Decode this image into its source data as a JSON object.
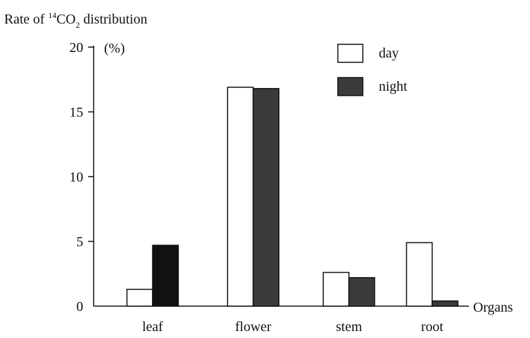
{
  "chart_data": {
    "type": "bar",
    "title": "",
    "ylabel_parts": {
      "prefix": "Rate of ",
      "superscript": "14",
      "co": "CO",
      "subscript": "2",
      "suffix": " distribution"
    },
    "y_unit": "(%)",
    "xlabel": "Organs",
    "categories": [
      "leaf",
      "flower",
      "stem",
      "root"
    ],
    "series": [
      {
        "name": "day",
        "values": [
          1.3,
          16.9,
          2.6,
          4.9
        ]
      },
      {
        "name": "night",
        "values": [
          4.7,
          16.8,
          2.2,
          0.4
        ]
      }
    ],
    "ylim": [
      0,
      20
    ],
    "yticks": [
      0,
      5,
      10,
      15,
      20
    ],
    "grid": false,
    "legend_position": "top-right",
    "colors": {
      "day_fill": "#ffffff",
      "night_fill_leaf": "#111111",
      "night_fill": "#3a3a3a",
      "stroke": "#111111"
    }
  }
}
